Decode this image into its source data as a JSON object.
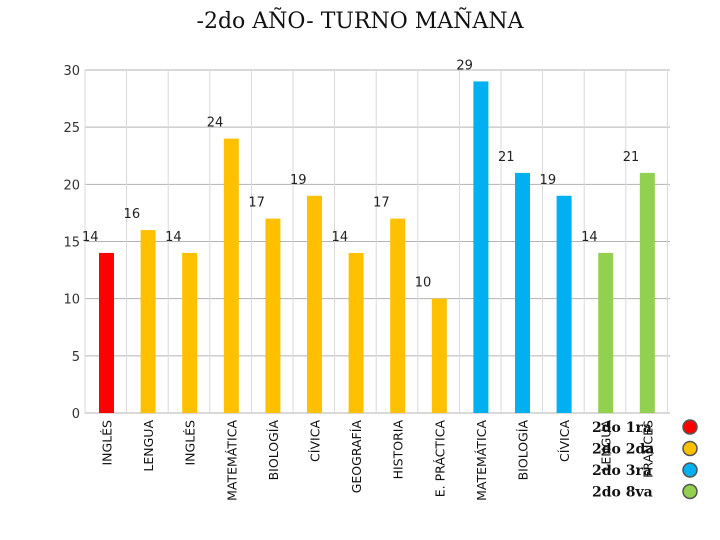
{
  "chart_data": {
    "type": "bar",
    "title": "-2do AÑO- TURNO MAÑANA",
    "categories": [
      "INGLÉS",
      "LENGUA",
      "INGLÉS",
      "MATEMÁTICA",
      "BIOLOGÍA",
      "CÍVICA",
      "GEOGRAFÍA",
      "HISTORIA",
      "E. PRÁCTICA",
      "MATEMÁTICA",
      "BIOLOGÍA",
      "CÍVICA",
      "LENGUA",
      "FRANCÉS"
    ],
    "values": [
      14,
      16,
      14,
      24,
      17,
      19,
      14,
      17,
      10,
      29,
      21,
      19,
      14,
      21
    ],
    "value_labels": [
      "14",
      "16",
      "14",
      "24",
      "17",
      "19",
      "14",
      "17",
      "10",
      "29",
      "21",
      "19",
      "14",
      "21"
    ],
    "group_index": [
      0,
      1,
      1,
      1,
      1,
      1,
      1,
      1,
      1,
      2,
      2,
      2,
      3,
      3
    ],
    "groups": [
      {
        "name": "2do 1ra",
        "color": "#ff0000"
      },
      {
        "name": "2do 2da",
        "color": "#ffc000"
      },
      {
        "name": "2do 3ra",
        "color": "#00b0f0"
      },
      {
        "name": "2do 8va",
        "color": "#92d050"
      }
    ],
    "ylim": [
      0,
      30
    ],
    "yticks": [
      "0",
      "5",
      "10",
      "15",
      "20",
      "25",
      "30"
    ],
    "xlabel": "",
    "ylabel": "",
    "grid": true,
    "legend_position": "bottom-right"
  }
}
